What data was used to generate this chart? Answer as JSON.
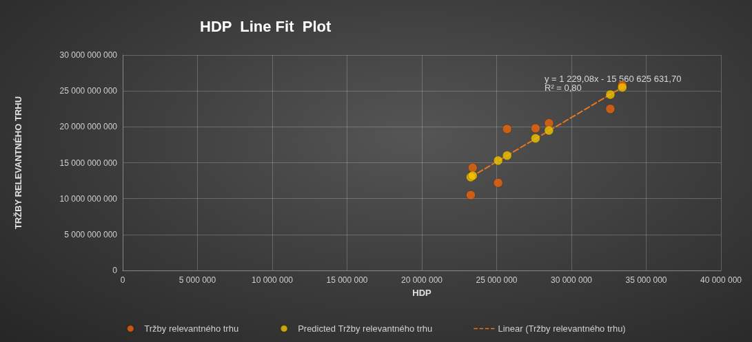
{
  "chart_data": {
    "type": "scatter",
    "title": "HDP  Line Fit  Plot",
    "xlabel": "HDP",
    "ylabel": "TRŽBY RELEVANTNÉHO TRHU",
    "annotations": [
      "y = 1 229,08x - 15 560 625 631,70\nR² = 0,80"
    ],
    "series": [
      {
        "name": "Tržby relevantného trhu",
        "color": "#e8640c",
        "x": [
          23270000,
          23400000,
          25100000,
          25700000,
          27600000,
          28500000,
          32600000,
          33400000
        ],
        "values": [
          10500000000,
          14300000000,
          12200000000,
          19700000000,
          19800000000,
          20500000000,
          22500000000,
          25800000000
        ]
      },
      {
        "name": "Predicted Tržby relevantného trhu",
        "color": "#f2c200",
        "x": [
          23270000,
          23400000,
          25100000,
          25700000,
          27600000,
          28500000,
          32600000,
          33400000
        ],
        "values": [
          13000000000,
          13200000000,
          15300000000,
          16000000000,
          18400000000,
          19500000000,
          24500000000,
          25500000000
        ]
      },
      {
        "name": "Linear (Tržby relevantného trhu)",
        "type": "line",
        "line_style": "dashed",
        "marker": "none",
        "color": "#e8771e",
        "x": [
          23270000,
          33400000
        ],
        "values": [
          13000000000,
          25500000000
        ]
      }
    ],
    "xlim": [
      0,
      40000000
    ],
    "xticks": [
      {
        "value": 0,
        "label": "0"
      },
      {
        "value": 5000000,
        "label": "5 000 000"
      },
      {
        "value": 10000000,
        "label": "10 000 000"
      },
      {
        "value": 15000000,
        "label": "15 000 000"
      },
      {
        "value": 20000000,
        "label": "20 000 000"
      },
      {
        "value": 25000000,
        "label": "25 000 000"
      },
      {
        "value": 30000000,
        "label": "30 000 000"
      },
      {
        "value": 35000000,
        "label": "35 000 000"
      },
      {
        "value": 40000000,
        "label": "40 000 000"
      }
    ],
    "ylim": [
      0,
      30000000000
    ],
    "yticks": [
      {
        "value": 0,
        "label": "0"
      },
      {
        "value": 5000000000,
        "label": "5 000 000 000"
      },
      {
        "value": 10000000000,
        "label": "10 000 000 000"
      },
      {
        "value": 15000000000,
        "label": "15 000 000 000"
      },
      {
        "value": 20000000000,
        "label": "20 000 000 000"
      },
      {
        "value": 25000000000,
        "label": "25 000 000 000"
      },
      {
        "value": 30000000000,
        "label": "30 000 000 000"
      }
    ],
    "grid": true,
    "legend": "bottom",
    "marker": "circle"
  }
}
